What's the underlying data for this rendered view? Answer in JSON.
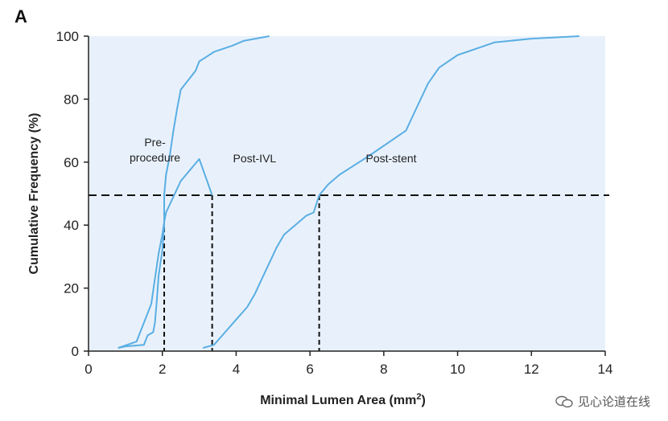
{
  "panel_label": "A",
  "chart_data": {
    "type": "line",
    "title": "",
    "xlabel_main": "Minimal Lumen Area (mm",
    "xlabel_sup": "2",
    "xlabel_end": ")",
    "ylabel": "Cumulative Frequency (%)",
    "xlim": [
      0,
      14
    ],
    "ylim": [
      0,
      100
    ],
    "xticks": [
      "0",
      "2",
      "4",
      "6",
      "8",
      "10",
      "12",
      "14"
    ],
    "yticks": [
      "0",
      "20",
      "40",
      "60",
      "80",
      "100"
    ],
    "grid": false,
    "colors": {
      "curve": "#5aaee3",
      "background": "#e8f1fb",
      "reference": "#111111"
    },
    "reference_y": 49.5,
    "reference_x": [
      2.05,
      3.35,
      6.25
    ],
    "series": [
      {
        "annotation_line1": "Pre-",
        "annotation_line2": "procedure",
        "label_at": [
          1.8,
          62
        ],
        "points": [
          [
            0.8,
            1
          ],
          [
            1.0,
            1.5
          ],
          [
            1.5,
            2
          ],
          [
            1.6,
            5
          ],
          [
            1.75,
            6
          ],
          [
            1.8,
            9
          ],
          [
            1.85,
            16
          ],
          [
            1.9,
            24
          ],
          [
            2.0,
            32
          ],
          [
            2.05,
            40
          ],
          [
            2.05,
            49.5
          ],
          [
            2.1,
            56
          ],
          [
            2.2,
            62
          ],
          [
            2.3,
            70
          ],
          [
            2.4,
            77
          ],
          [
            2.5,
            83
          ],
          [
            2.7,
            86
          ],
          [
            2.9,
            89
          ],
          [
            3.0,
            92
          ],
          [
            3.4,
            95
          ],
          [
            3.9,
            97
          ],
          [
            4.2,
            98.5
          ],
          [
            4.9,
            100
          ]
        ]
      },
      {
        "annotation_line1": "Post-IVL",
        "annotation_line2": "",
        "label_at": [
          4.5,
          60
        ],
        "points": [
          [
            0.8,
            1
          ],
          [
            1.3,
            3
          ],
          [
            1.4,
            6
          ],
          [
            1.5,
            9
          ],
          [
            1.7,
            15
          ],
          [
            1.8,
            23
          ],
          [
            1.9,
            31
          ],
          [
            2.0,
            37
          ],
          [
            2.05,
            41
          ],
          [
            2.1,
            44
          ],
          [
            2.5,
            54
          ],
          [
            3.0,
            61
          ],
          [
            3.35,
            49.5
          ]
        ]
      },
      {
        "annotation_line1": "Post-stent",
        "annotation_line2": "",
        "label_at": [
          8.2,
          60
        ],
        "points": [
          [
            3.1,
            1
          ],
          [
            3.4,
            2
          ],
          [
            3.7,
            6
          ],
          [
            4.0,
            10
          ],
          [
            4.3,
            14
          ],
          [
            4.5,
            18
          ],
          [
            4.7,
            23
          ],
          [
            4.9,
            28
          ],
          [
            5.1,
            33
          ],
          [
            5.3,
            37
          ],
          [
            5.6,
            40
          ],
          [
            5.9,
            43
          ],
          [
            6.1,
            44
          ],
          [
            6.25,
            49.5
          ],
          [
            6.5,
            53
          ],
          [
            6.8,
            56
          ],
          [
            7.2,
            59
          ],
          [
            7.6,
            62
          ],
          [
            8.1,
            66
          ],
          [
            8.6,
            70
          ],
          [
            8.8,
            75
          ],
          [
            9.0,
            80
          ],
          [
            9.2,
            85
          ],
          [
            9.5,
            90
          ],
          [
            10.0,
            94
          ],
          [
            10.5,
            96
          ],
          [
            11.0,
            98
          ],
          [
            12.0,
            99.2
          ],
          [
            13.3,
            100
          ]
        ]
      }
    ]
  },
  "watermark_text": "见心论道在线"
}
